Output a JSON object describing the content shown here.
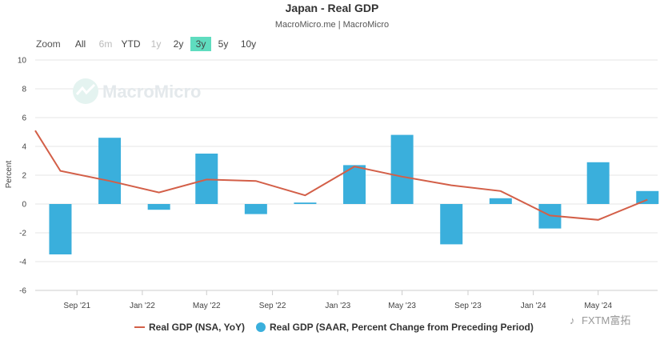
{
  "chart_data": {
    "type": "bar",
    "title": "Japan - Real GDP",
    "subtitle": "MacroMicro.me | MacroMicro",
    "ylabel": "Percent",
    "ylim": [
      -6,
      10
    ],
    "yticks": [
      -6,
      -4,
      -2,
      0,
      2,
      4,
      6,
      8,
      10
    ],
    "xlim": [
      "2021-06-15",
      "2024-08-20"
    ],
    "x_tick_labels": [
      {
        "label": "Sep '21",
        "date": "2021-09-01"
      },
      {
        "label": "Jan '22",
        "date": "2022-01-01"
      },
      {
        "label": "May '22",
        "date": "2022-05-01"
      },
      {
        "label": "Sep '22",
        "date": "2022-09-01"
      },
      {
        "label": "Jan '23",
        "date": "2023-01-01"
      },
      {
        "label": "May '23",
        "date": "2023-05-01"
      },
      {
        "label": "Sep '23",
        "date": "2023-09-01"
      },
      {
        "label": "Jan '24",
        "date": "2024-01-01"
      },
      {
        "label": "May '24",
        "date": "2024-05-01"
      }
    ],
    "series": [
      {
        "name": "Real GDP (NSA, YoY)",
        "type": "line",
        "color": "#d35f48",
        "x": [
          "2021-06-15",
          "2021-08-01",
          "2021-11-01",
          "2022-02-01",
          "2022-05-01",
          "2022-08-01",
          "2022-11-01",
          "2023-02-01",
          "2023-05-01",
          "2023-08-01",
          "2023-11-01",
          "2024-02-01",
          "2024-05-01",
          "2024-08-01"
        ],
        "values": [
          5.1,
          2.3,
          1.6,
          0.8,
          1.7,
          1.6,
          0.6,
          2.6,
          1.9,
          1.3,
          0.9,
          -0.8,
          -1.1,
          0.3
        ]
      },
      {
        "name": "Real GDP (SAAR, Percent Change from Preceding Period)",
        "type": "bar",
        "color": "#3aafdc",
        "x": [
          "2021-08-01",
          "2021-11-01",
          "2022-02-01",
          "2022-05-01",
          "2022-08-01",
          "2022-11-01",
          "2023-02-01",
          "2023-05-01",
          "2023-08-01",
          "2023-11-01",
          "2024-02-01",
          "2024-05-01",
          "2024-08-01"
        ],
        "values": [
          -3.5,
          4.6,
          -0.4,
          3.5,
          -0.7,
          0.1,
          2.7,
          4.8,
          -2.8,
          0.4,
          -1.7,
          2.9,
          0.9
        ]
      }
    ],
    "grid": true,
    "legend_position": "bottom"
  },
  "zoom": {
    "label": "Zoom",
    "buttons": [
      {
        "label": "All",
        "state": "enabled"
      },
      {
        "label": "6m",
        "state": "disabled"
      },
      {
        "label": "YTD",
        "state": "enabled"
      },
      {
        "label": "1y",
        "state": "disabled"
      },
      {
        "label": "2y",
        "state": "enabled"
      },
      {
        "label": "3y",
        "state": "selected"
      },
      {
        "label": "5y",
        "state": "enabled"
      },
      {
        "label": "10y",
        "state": "enabled"
      }
    ],
    "selected_color": "#5fdcbf"
  },
  "watermark": "MacroMicro",
  "corner_brand": "FXTM富拓",
  "colors": {
    "grid": "#e6e6e6",
    "axis": "#cccccc"
  },
  "icons": {
    "watermark_logo": "macromicro-logo-icon",
    "corner_logo": "tiktok-logo-icon"
  }
}
